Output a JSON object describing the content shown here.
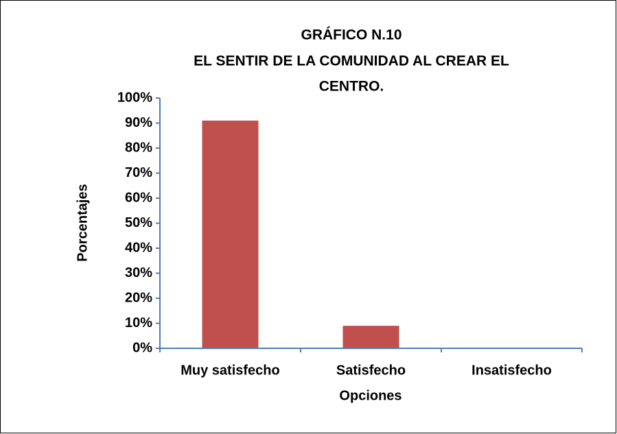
{
  "chart_data": {
    "type": "bar",
    "title": [
      "GRÁFICO N.10",
      "EL SENTIR DE LA COMUNIDAD AL CREAR EL",
      "CENTRO."
    ],
    "x_label": "Opciones",
    "y_label": "Porcentajes",
    "categories": [
      "Muy satisfecho",
      "Satisfecho",
      "Insatisfecho"
    ],
    "values": [
      91,
      9,
      0
    ],
    "color": "#c0504d",
    "axis_color": "#4a7ebb",
    "ylim": [
      0,
      100
    ],
    "yticks": [
      {
        "value": 0,
        "label": "0%"
      },
      {
        "value": 10,
        "label": "10%"
      },
      {
        "value": 20,
        "label": "20%"
      },
      {
        "value": 30,
        "label": "30%"
      },
      {
        "value": 40,
        "label": "40%"
      },
      {
        "value": 50,
        "label": "50%"
      },
      {
        "value": 60,
        "label": "60%"
      },
      {
        "value": 70,
        "label": "70%"
      },
      {
        "value": 80,
        "label": "80%"
      },
      {
        "value": 90,
        "label": "90%"
      },
      {
        "value": 100,
        "label": "100%"
      }
    ],
    "grid": false
  }
}
